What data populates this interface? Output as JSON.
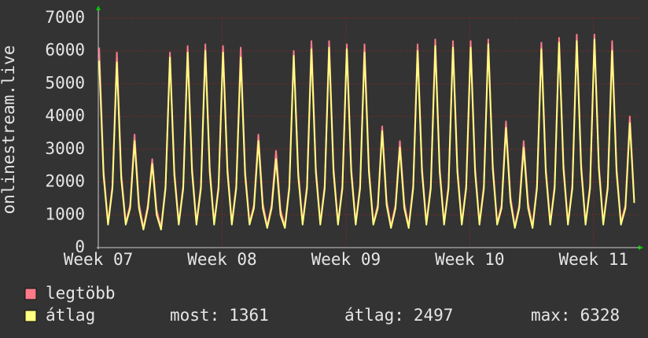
{
  "chart_data": {
    "type": "line",
    "ylabel": "onlinestream.live",
    "x": [
      0.05,
      0.3,
      0.55,
      0.8,
      1.05,
      1.3,
      1.55,
      1.8,
      2.05,
      2.3,
      2.55,
      2.8,
      3.05,
      3.3,
      3.55,
      3.8,
      4.05,
      4.3,
      4.55,
      4.8,
      5.05,
      5.3,
      5.55,
      5.8,
      6.05,
      6.3,
      6.55,
      6.8,
      7.05,
      7.3,
      7.55,
      7.8,
      8.05,
      8.3,
      8.55,
      8.8,
      9.05,
      9.3,
      9.55,
      9.8,
      10.05,
      10.3,
      10.55,
      10.8,
      11.05,
      11.3,
      11.55,
      11.8,
      12.05,
      12.3,
      12.55,
      12.8,
      13.05,
      13.3,
      13.55,
      13.8,
      14.05,
      14.3,
      14.55,
      14.8,
      15.05,
      15.3,
      15.55,
      15.8,
      16.05,
      16.3,
      16.55,
      16.8,
      17.05,
      17.3,
      17.55,
      17.8,
      18.05,
      18.3,
      18.55,
      18.8,
      19.05,
      19.3,
      19.55,
      19.8,
      20.05,
      20.3,
      20.55,
      20.8,
      21.05,
      21.3,
      21.55,
      21.8,
      22.05,
      22.3,
      22.55,
      22.8,
      23.05,
      23.3,
      23.55,
      23.8,
      24.05,
      24.3,
      24.55,
      24.8,
      25.05,
      25.3,
      25.55,
      25.8,
      26.05,
      26.3,
      26.55,
      26.8,
      27.05,
      27.3,
      27.55,
      27.8,
      28.05,
      28.3,
      28.55,
      28.8,
      29.05,
      29.3,
      29.55,
      29.8,
      30.05,
      30.3
    ],
    "series": [
      {
        "name": "legtöbb",
        "color": "#ff7b8a",
        "values": [
          6100,
          2350,
          750,
          1900,
          5950,
          2250,
          750,
          1300,
          3450,
          1350,
          600,
          1300,
          2700,
          1150,
          600,
          1900,
          5950,
          2350,
          750,
          1900,
          6150,
          2450,
          750,
          1900,
          6200,
          2450,
          750,
          1900,
          6150,
          2450,
          750,
          1900,
          6100,
          2350,
          750,
          1300,
          3450,
          1350,
          650,
          1300,
          2950,
          1150,
          650,
          1900,
          6000,
          2350,
          750,
          1900,
          6300,
          2450,
          750,
          1900,
          6300,
          2450,
          750,
          1900,
          6200,
          2450,
          750,
          1900,
          6200,
          2450,
          750,
          1300,
          3700,
          1450,
          650,
          1300,
          3250,
          1350,
          650,
          1900,
          6200,
          2450,
          750,
          1900,
          6350,
          2450,
          750,
          1900,
          6300,
          2450,
          750,
          1900,
          6300,
          2450,
          750,
          1900,
          6350,
          2550,
          750,
          1300,
          3850,
          1550,
          650,
          1300,
          3250,
          1350,
          650,
          1900,
          6250,
          2450,
          750,
          1900,
          6400,
          2550,
          750,
          1900,
          6500,
          2550,
          750,
          1900,
          6500,
          2550,
          750,
          1900,
          6300,
          2450,
          750,
          1300,
          4000,
          1450
        ]
      },
      {
        "name": "átlag",
        "color": "#ffff80",
        "values": [
          5700,
          2200,
          700,
          1800,
          5650,
          2100,
          700,
          1200,
          3250,
          1200,
          550,
          1200,
          2550,
          1000,
          550,
          1800,
          5800,
          2200,
          700,
          1800,
          5950,
          2300,
          700,
          1800,
          6000,
          2300,
          700,
          1800,
          5950,
          2300,
          700,
          1800,
          5800,
          2200,
          700,
          1200,
          3250,
          1200,
          600,
          1200,
          2700,
          1000,
          600,
          1800,
          5850,
          2200,
          700,
          1800,
          6050,
          2300,
          700,
          1800,
          6100,
          2300,
          700,
          1800,
          6050,
          2300,
          700,
          1800,
          5950,
          2300,
          700,
          1200,
          3550,
          1300,
          600,
          1200,
          3050,
          1200,
          600,
          1800,
          6000,
          2300,
          700,
          1800,
          6150,
          2300,
          700,
          1800,
          6100,
          2300,
          700,
          1800,
          6100,
          2300,
          700,
          1800,
          6200,
          2400,
          700,
          1200,
          3650,
          1400,
          600,
          1200,
          3050,
          1200,
          600,
          1800,
          6050,
          2300,
          700,
          1800,
          6250,
          2400,
          700,
          1800,
          6300,
          2400,
          700,
          1800,
          6350,
          2400,
          700,
          1800,
          6000,
          2300,
          700,
          1200,
          3800,
          1361
        ]
      }
    ],
    "xlim": [
      0,
      30.5
    ],
    "xticks": [
      {
        "value": 0,
        "label": "Week 07"
      },
      {
        "value": 7,
        "label": "Week 08"
      },
      {
        "value": 14,
        "label": "Week 09"
      },
      {
        "value": 21,
        "label": "Week 10"
      },
      {
        "value": 28,
        "label": "Week 11"
      }
    ],
    "ylim": [
      0,
      7000
    ],
    "yticks": [
      0,
      1000,
      2000,
      3000,
      4000,
      5000,
      6000,
      7000
    ],
    "grid": true,
    "stats": [
      {
        "label": "most:",
        "value": 1361
      },
      {
        "label": "átlag:",
        "value": 2497
      },
      {
        "label": "max:",
        "value": 6328
      }
    ]
  }
}
